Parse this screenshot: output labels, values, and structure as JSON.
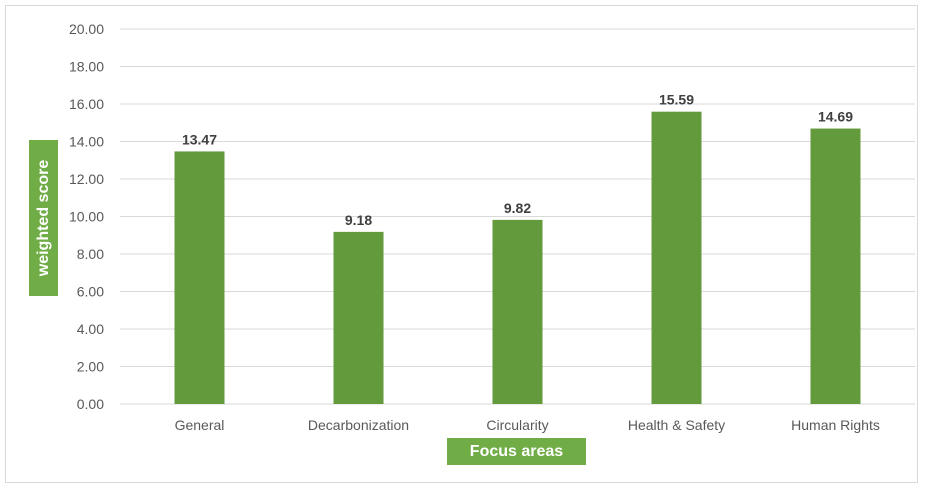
{
  "chart_data": {
    "type": "bar",
    "categories": [
      "General",
      "Decarbonization",
      "Circularity",
      "Health & Safety",
      "Human Rights"
    ],
    "values": [
      13.47,
      9.18,
      9.82,
      15.59,
      14.69
    ],
    "data_labels": [
      "13.47",
      "9.18",
      "9.82",
      "15.59",
      "14.69"
    ],
    "y_ticks": [
      "0.00",
      "2.00",
      "4.00",
      "6.00",
      "8.00",
      "10.00",
      "12.00",
      "14.00",
      "16.00",
      "18.00",
      "20.00"
    ],
    "ylim": [
      0,
      20
    ],
    "xlabel": "Focus areas",
    "ylabel": "weighted score",
    "grid": true,
    "legend": "none",
    "colors": {
      "bar": "#629a3c",
      "gridline": "#d9d9d9",
      "axis_title_bg": "#70ad47",
      "tick_text": "#595959",
      "data_label_text": "#404040"
    }
  }
}
